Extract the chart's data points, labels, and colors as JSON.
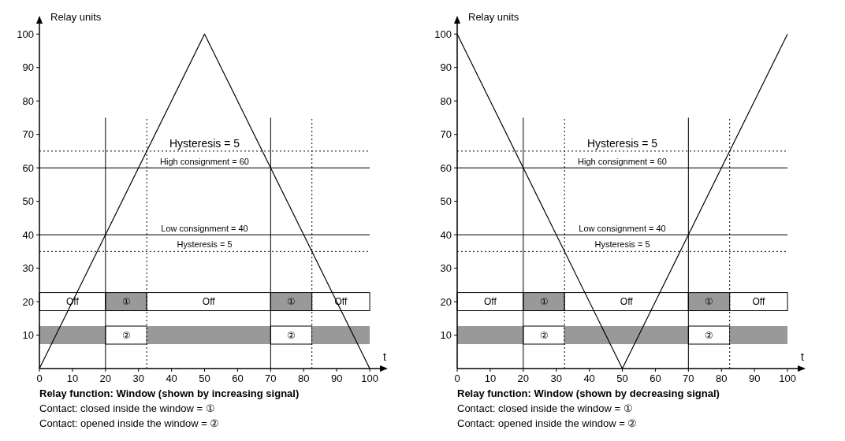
{
  "chart_data": [
    {
      "type": "line",
      "ylabel": "Relay units",
      "xlabel": "t",
      "x": [
        0,
        50,
        100
      ],
      "series": [
        {
          "color": "#000000",
          "values": [
            0,
            100,
            0
          ]
        }
      ],
      "xlim": [
        0,
        105
      ],
      "ylim": [
        0,
        105
      ],
      "xticks": [
        0,
        10,
        20,
        30,
        40,
        50,
        60,
        70,
        80,
        90,
        100
      ],
      "yticks": [
        10,
        20,
        30,
        40,
        50,
        60,
        70,
        80,
        90,
        100
      ],
      "marker": "none",
      "line_style": "solid",
      "ref_lines": [
        {
          "axis": "y",
          "value": 65,
          "line_style": "dotted"
        },
        {
          "axis": "y",
          "value": 60,
          "label": "High consignment = 60",
          "line_style": "solid"
        },
        {
          "axis": "y",
          "value": 40,
          "label": "Low consignment = 40",
          "line_style": "solid"
        },
        {
          "axis": "y",
          "value": 35,
          "line_style": "dotted"
        },
        {
          "axis": "x",
          "value": 20,
          "line_style": "solid"
        },
        {
          "axis": "x",
          "value": 32.5,
          "line_style": "dotted"
        },
        {
          "axis": "x",
          "value": 70,
          "line_style": "solid"
        },
        {
          "axis": "x",
          "value": 82.5,
          "line_style": "dotted"
        }
      ],
      "bands": [
        {
          "axis": "x",
          "from": 20,
          "to": 32.5,
          "color": "#999999"
        },
        {
          "axis": "x",
          "from": 70,
          "to": 82.5,
          "color": "#999999"
        }
      ],
      "annotations": [
        {
          "text": "Hysteresis = 5",
          "y": 65
        },
        {
          "text": "Hysteresis = 5",
          "y": 35
        },
        "Off",
        "①",
        "Off",
        "①",
        "Off",
        "②",
        "②",
        "Relay function: Window (shown by increasing signal)",
        "Contact: closed inside the window = ①",
        "Contact: opened inside the window = ②"
      ]
    },
    {
      "type": "line",
      "ylabel": "Relay units",
      "xlabel": "t",
      "x": [
        0,
        50,
        100
      ],
      "series": [
        {
          "color": "#000000",
          "values": [
            100,
            0,
            100
          ]
        }
      ],
      "xlim": [
        0,
        105
      ],
      "ylim": [
        0,
        105
      ],
      "xticks": [
        0,
        10,
        20,
        30,
        40,
        50,
        60,
        70,
        80,
        90,
        100
      ],
      "yticks": [
        10,
        20,
        30,
        40,
        50,
        60,
        70,
        80,
        90,
        100
      ],
      "marker": "none",
      "line_style": "solid",
      "ref_lines": [
        {
          "axis": "y",
          "value": 65,
          "line_style": "dotted"
        },
        {
          "axis": "y",
          "value": 60,
          "label": "High consignment = 60",
          "line_style": "solid"
        },
        {
          "axis": "y",
          "value": 40,
          "label": "Low consignment = 40",
          "line_style": "solid"
        },
        {
          "axis": "y",
          "value": 35,
          "line_style": "dotted"
        },
        {
          "axis": "x",
          "value": 20,
          "line_style": "solid"
        },
        {
          "axis": "x",
          "value": 32.5,
          "line_style": "dotted"
        },
        {
          "axis": "x",
          "value": 70,
          "line_style": "solid"
        },
        {
          "axis": "x",
          "value": 82.5,
          "line_style": "dotted"
        }
      ],
      "bands": [
        {
          "axis": "x",
          "from": 20,
          "to": 32.5,
          "color": "#999999"
        },
        {
          "axis": "x",
          "from": 70,
          "to": 82.5,
          "color": "#999999"
        }
      ],
      "annotations": [
        {
          "text": "Hysteresis = 5",
          "y": 65
        },
        {
          "text": "Hysteresis = 5",
          "y": 35
        },
        "Off",
        "①",
        "Off",
        "①",
        "Off",
        "②",
        "②",
        "Relay function: Window (shown by decreasing signal)",
        "Contact: closed inside the window = ①",
        "Contact: opened inside the window = ②"
      ]
    }
  ]
}
